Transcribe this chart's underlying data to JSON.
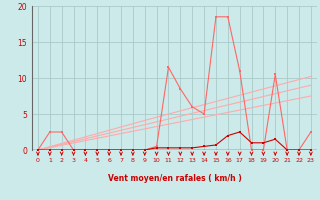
{
  "xlabel": "Vent moyen/en rafales ( km/h )",
  "bg_color": "#cceaea",
  "grid_color": "#aacaca",
  "line_dark": "#cc0000",
  "line_mid": "#ff6666",
  "line_light": "#ffaaaa",
  "tick_color": "#cc0000",
  "xlim": [
    -0.5,
    23.5
  ],
  "ylim": [
    0,
    20
  ],
  "yticks": [
    0,
    5,
    10,
    15,
    20
  ],
  "xticks": [
    0,
    1,
    2,
    3,
    4,
    5,
    6,
    7,
    8,
    9,
    10,
    11,
    12,
    13,
    14,
    15,
    16,
    17,
    18,
    19,
    20,
    21,
    22,
    23
  ],
  "hours": [
    0,
    1,
    2,
    3,
    4,
    5,
    6,
    7,
    8,
    9,
    10,
    11,
    12,
    13,
    14,
    15,
    16,
    17,
    18,
    19,
    20,
    21,
    22,
    23
  ],
  "wind_gust": [
    0,
    2.5,
    2.5,
    0,
    0,
    0,
    0,
    0,
    0,
    0,
    0.5,
    11.5,
    8.5,
    6,
    5,
    18.5,
    18.5,
    11,
    0,
    0,
    10.5,
    0,
    0,
    2.5
  ],
  "wind_avg": [
    0,
    0,
    0,
    0,
    0,
    0,
    0,
    0,
    0,
    0,
    0.3,
    0.3,
    0.3,
    0.3,
    0.5,
    0.7,
    2,
    2.5,
    1,
    1,
    1.5,
    0,
    0,
    0
  ],
  "diag1_y": [
    0,
    0.46,
    0.91,
    1.37,
    1.83,
    2.28,
    2.74,
    3.2,
    3.65,
    4.11,
    4.56,
    5.0,
    5.43,
    5.87,
    6.3,
    6.74,
    7.17,
    7.61,
    8.04,
    8.48,
    8.91,
    9.35,
    9.78,
    10.22
  ],
  "diag2_y": [
    0,
    0.39,
    0.78,
    1.17,
    1.56,
    1.96,
    2.35,
    2.74,
    3.13,
    3.52,
    3.91,
    4.3,
    4.7,
    5.09,
    5.48,
    5.87,
    6.26,
    6.65,
    7.04,
    7.43,
    7.83,
    8.22,
    8.61,
    9.0
  ],
  "diag3_y": [
    0,
    0.33,
    0.65,
    0.98,
    1.3,
    1.63,
    1.96,
    2.28,
    2.61,
    2.93,
    3.26,
    3.59,
    3.91,
    4.24,
    4.57,
    4.89,
    5.22,
    5.54,
    5.87,
    6.2,
    6.52,
    6.85,
    7.17,
    7.5
  ]
}
